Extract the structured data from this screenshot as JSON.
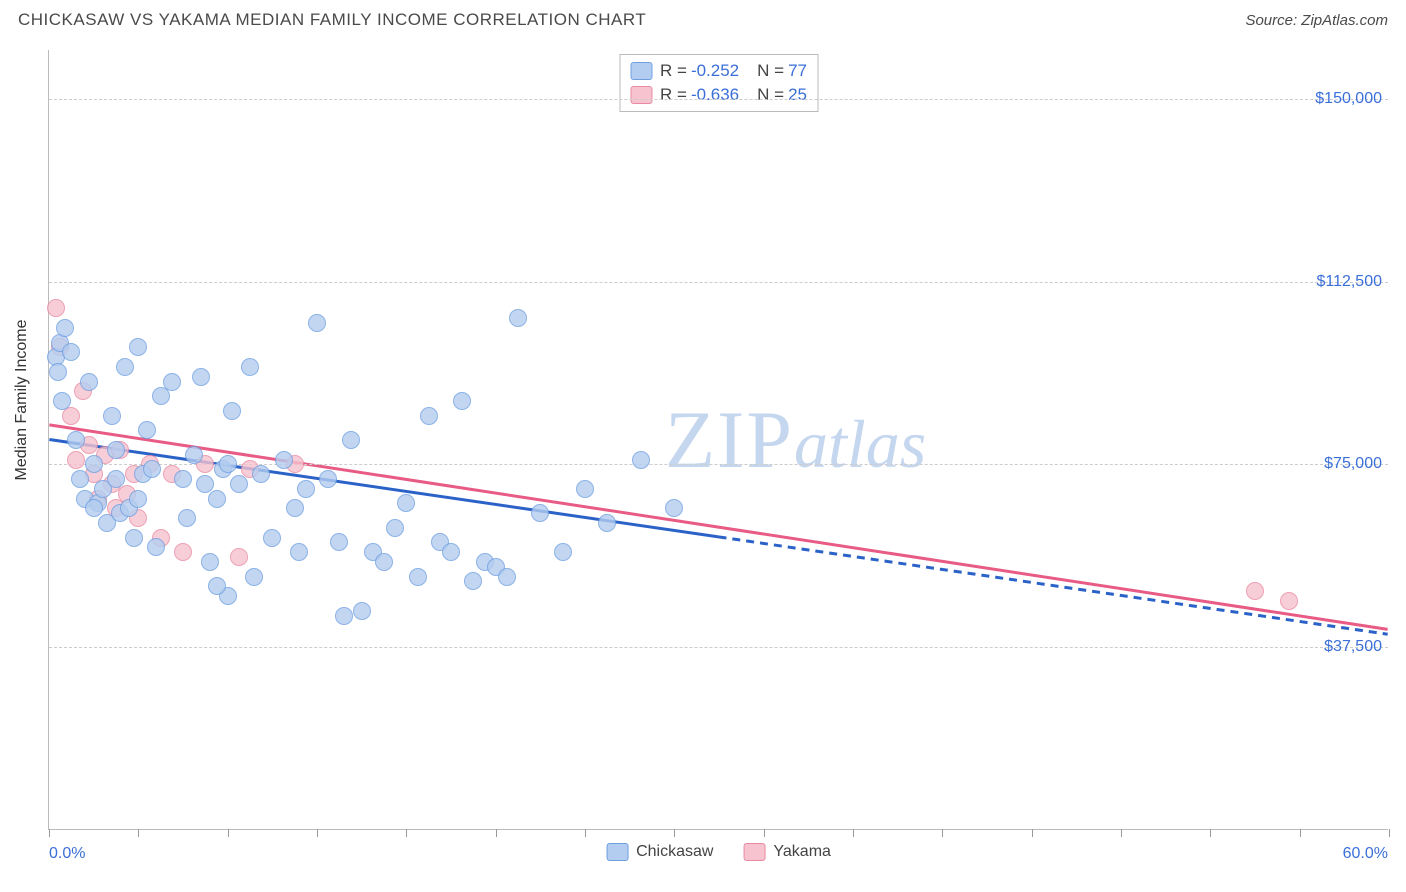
{
  "title": "CHICKASAW VS YAKAMA MEDIAN FAMILY INCOME CORRELATION CHART",
  "source": "Source: ZipAtlas.com",
  "watermark_zip": "ZIP",
  "watermark_atlas": "atlas",
  "y_axis_title": "Median Family Income",
  "xlim": [
    0,
    60
  ],
  "xlim_labels": {
    "min": "0.0%",
    "max": "60.0%"
  },
  "ylim": [
    0,
    160000
  ],
  "yticks": [
    {
      "value": 37500,
      "label": "$37,500"
    },
    {
      "value": 75000,
      "label": "$75,000"
    },
    {
      "value": 112500,
      "label": "$112,500"
    },
    {
      "value": 150000,
      "label": "$150,000"
    }
  ],
  "xtick_positions": [
    0,
    4,
    8,
    12,
    16,
    20,
    24,
    28,
    32,
    36,
    40,
    44,
    48,
    52,
    56,
    60
  ],
  "series": {
    "chickasaw": {
      "label": "Chickasaw",
      "fill": "#b3cdf0",
      "stroke": "#6f9fe0",
      "line_color": "#2b62c8",
      "r_label": "R =",
      "r_value": "-0.252",
      "n_label": "N =",
      "n_value": "77",
      "regression": {
        "solid": [
          [
            0,
            80000
          ],
          [
            30,
            60000
          ]
        ],
        "dashed": [
          [
            30,
            60000
          ],
          [
            60,
            40000
          ]
        ]
      },
      "points": [
        [
          0.3,
          97000
        ],
        [
          0.4,
          94000
        ],
        [
          0.5,
          100000
        ],
        [
          0.6,
          88000
        ],
        [
          0.7,
          103000
        ],
        [
          1.0,
          98000
        ],
        [
          1.2,
          80000
        ],
        [
          1.4,
          72000
        ],
        [
          1.6,
          68000
        ],
        [
          1.8,
          92000
        ],
        [
          2.0,
          75000
        ],
        [
          2.2,
          67000
        ],
        [
          2.4,
          70000
        ],
        [
          2.6,
          63000
        ],
        [
          2.8,
          85000
        ],
        [
          3.0,
          78000
        ],
        [
          3.2,
          65000
        ],
        [
          3.4,
          95000
        ],
        [
          3.6,
          66000
        ],
        [
          3.8,
          60000
        ],
        [
          4.0,
          68000
        ],
        [
          4.2,
          73000
        ],
        [
          4.4,
          82000
        ],
        [
          4.6,
          74000
        ],
        [
          4.8,
          58000
        ],
        [
          5.0,
          89000
        ],
        [
          5.5,
          92000
        ],
        [
          6.0,
          72000
        ],
        [
          6.2,
          64000
        ],
        [
          6.5,
          77000
        ],
        [
          7.0,
          71000
        ],
        [
          7.2,
          55000
        ],
        [
          7.5,
          68000
        ],
        [
          7.8,
          74000
        ],
        [
          8.0,
          75000
        ],
        [
          8.2,
          86000
        ],
        [
          8.5,
          71000
        ],
        [
          9.0,
          95000
        ],
        [
          9.2,
          52000
        ],
        [
          9.5,
          73000
        ],
        [
          10.0,
          60000
        ],
        [
          10.5,
          76000
        ],
        [
          11.0,
          66000
        ],
        [
          11.5,
          70000
        ],
        [
          12.0,
          104000
        ],
        [
          12.5,
          72000
        ],
        [
          13.0,
          59000
        ],
        [
          13.5,
          80000
        ],
        [
          14.0,
          45000
        ],
        [
          14.5,
          57000
        ],
        [
          15.0,
          55000
        ],
        [
          15.5,
          62000
        ],
        [
          16.0,
          67000
        ],
        [
          16.5,
          52000
        ],
        [
          17.0,
          85000
        ],
        [
          17.5,
          59000
        ],
        [
          18.0,
          57000
        ],
        [
          18.5,
          88000
        ],
        [
          19.0,
          51000
        ],
        [
          19.5,
          55000
        ],
        [
          20.0,
          54000
        ],
        [
          21.0,
          105000
        ],
        [
          22.0,
          65000
        ],
        [
          23.0,
          57000
        ],
        [
          24.0,
          70000
        ],
        [
          25.0,
          63000
        ],
        [
          26.5,
          76000
        ],
        [
          28.0,
          66000
        ],
        [
          8.0,
          48000
        ],
        [
          11.2,
          57000
        ],
        [
          13.2,
          44000
        ],
        [
          6.8,
          93000
        ],
        [
          4.0,
          99000
        ],
        [
          2.0,
          66000
        ],
        [
          3.0,
          72000
        ],
        [
          7.5,
          50000
        ],
        [
          20.5,
          52000
        ]
      ]
    },
    "yakama": {
      "label": "Yakama",
      "fill": "#f6c3cf",
      "stroke": "#e98aa2",
      "line_color": "#e85b84",
      "r_label": "R =",
      "r_value": "-0.636",
      "n_label": "N =",
      "n_value": "25",
      "regression": {
        "solid": [
          [
            0,
            83000
          ],
          [
            60,
            41000
          ]
        ]
      },
      "points": [
        [
          0.3,
          107000
        ],
        [
          0.5,
          99000
        ],
        [
          1.0,
          85000
        ],
        [
          1.2,
          76000
        ],
        [
          1.5,
          90000
        ],
        [
          1.8,
          79000
        ],
        [
          2.0,
          73000
        ],
        [
          2.2,
          68000
        ],
        [
          2.5,
          77000
        ],
        [
          2.8,
          71000
        ],
        [
          3.0,
          66000
        ],
        [
          3.2,
          78000
        ],
        [
          3.5,
          69000
        ],
        [
          3.8,
          73000
        ],
        [
          4.0,
          64000
        ],
        [
          4.5,
          75000
        ],
        [
          5.0,
          60000
        ],
        [
          5.5,
          73000
        ],
        [
          6.0,
          57000
        ],
        [
          7.0,
          75000
        ],
        [
          8.5,
          56000
        ],
        [
          9.0,
          74000
        ],
        [
          11.0,
          75000
        ],
        [
          54.0,
          49000
        ],
        [
          55.5,
          47000
        ]
      ]
    }
  },
  "chart_style": {
    "point_diameter": 18,
    "grid_color": "#cccccc",
    "axis_color": "#bbbbbb",
    "label_color": "#3b6fd8",
    "watermark_color": "#c5d6ef",
    "watermark_fontsize": 82,
    "background": "#ffffff"
  }
}
